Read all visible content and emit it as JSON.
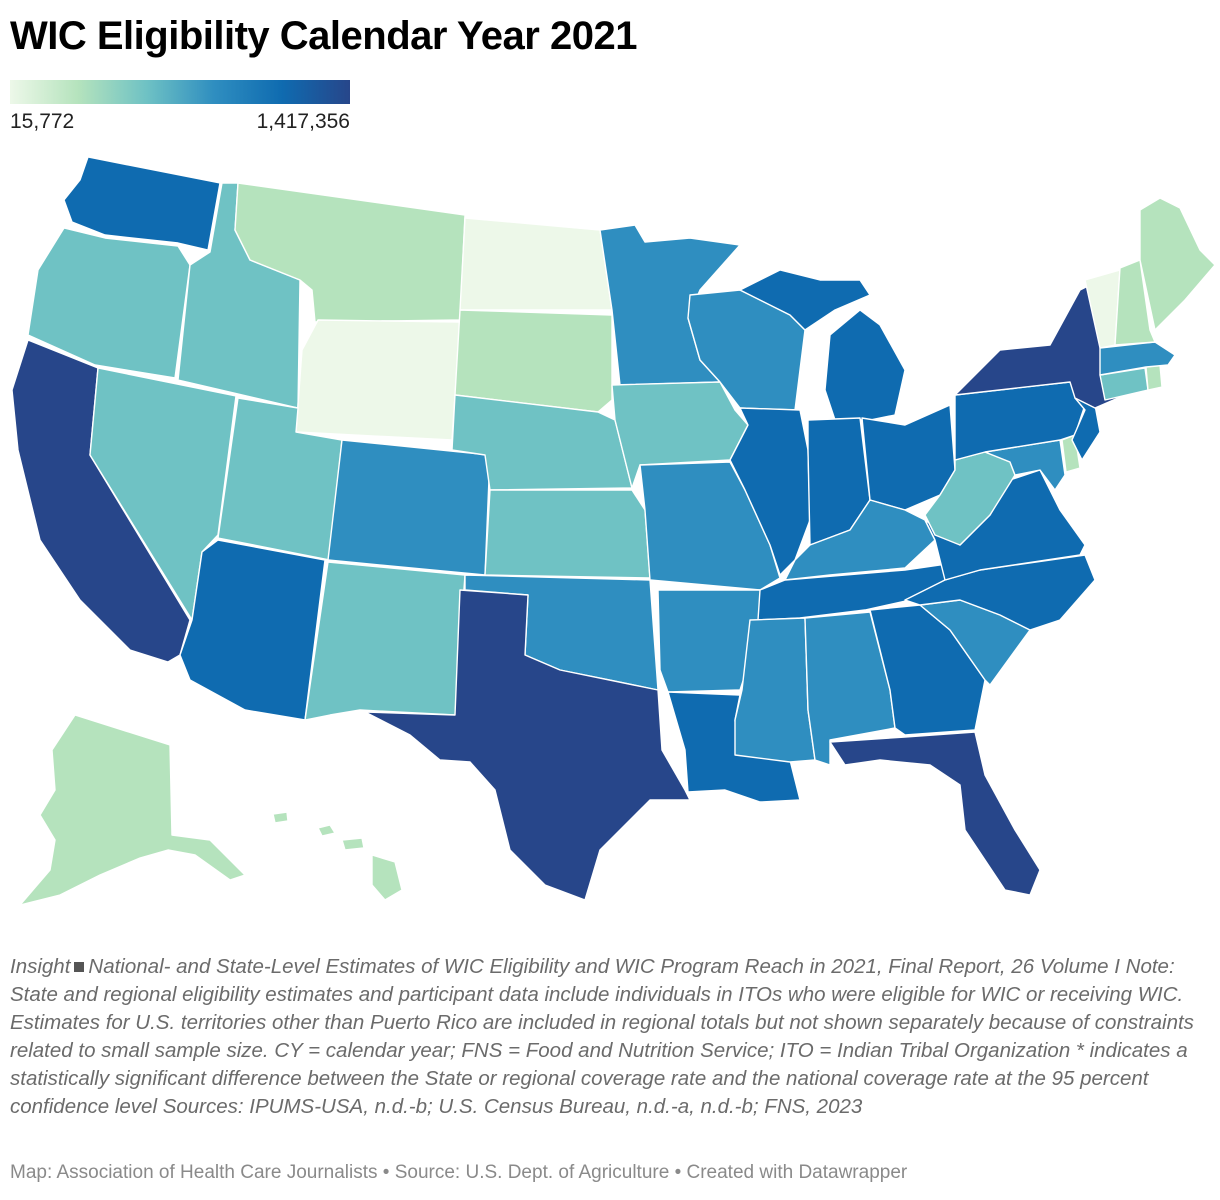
{
  "title": "WIC Eligibility Calendar Year 2021",
  "legend": {
    "min_label": "15,772",
    "max_label": "1,417,356",
    "min_value": 15772,
    "max_value": 1417356,
    "colors": [
      "#edf8e9",
      "#b5e3bd",
      "#6fc2c4",
      "#2f8ec0",
      "#0f6bb0",
      "#27468a"
    ]
  },
  "notes": {
    "source_prefix": "Insight",
    "source_line": "National- and State-Level Estimates of WIC Eligibility and WIC Program Reach in 2021, Final Report, 26",
    "body": "Volume I Note: State and regional eligibility estimates and participant data include individuals in ITOs who were eligible for WIC or receiving WIC. Estimates for U.S. territories other than Puerto Rico are included in regional totals but not shown separately because of constraints related to small sample size. CY = calendar year; FNS = Food and Nutrition Service; ITO = Indian Tribal Organization * indicates a statistically significant difference between the State or regional coverage rate and the national coverage rate at the 95 percent confidence level Sources: IPUMS-USA, n.d.-b; U.S. Census Bureau, n.d.-a, n.d.-b; FNS, 2023"
  },
  "credit": "Map: Association of Health Care Journalists • Source: U.S. Dept. of Agriculture • Created with Datawrapper",
  "chart_data": {
    "type": "choropleth",
    "title": "WIC Eligibility Calendar Year 2021",
    "scale_range": [
      15772,
      1417356
    ],
    "unit": "eligible individuals (color level: 1 = lowest, 6 = highest)",
    "states": [
      {
        "id": "WA",
        "level": 5
      },
      {
        "id": "OR",
        "level": 3
      },
      {
        "id": "CA",
        "level": 6
      },
      {
        "id": "ID",
        "level": 3
      },
      {
        "id": "NV",
        "level": 3
      },
      {
        "id": "MT",
        "level": 2
      },
      {
        "id": "WY",
        "level": 1
      },
      {
        "id": "UT",
        "level": 3
      },
      {
        "id": "AZ",
        "level": 5
      },
      {
        "id": "CO",
        "level": 4
      },
      {
        "id": "NM",
        "level": 3
      },
      {
        "id": "ND",
        "level": 1
      },
      {
        "id": "SD",
        "level": 2
      },
      {
        "id": "NE",
        "level": 3
      },
      {
        "id": "KS",
        "level": 3
      },
      {
        "id": "OK",
        "level": 4
      },
      {
        "id": "TX",
        "level": 6
      },
      {
        "id": "MN",
        "level": 4
      },
      {
        "id": "IA",
        "level": 3
      },
      {
        "id": "MO",
        "level": 4
      },
      {
        "id": "AR",
        "level": 4
      },
      {
        "id": "LA",
        "level": 5
      },
      {
        "id": "WI",
        "level": 4
      },
      {
        "id": "IL",
        "level": 5
      },
      {
        "id": "MI",
        "level": 5
      },
      {
        "id": "IN",
        "level": 5
      },
      {
        "id": "OH",
        "level": 5
      },
      {
        "id": "KY",
        "level": 4
      },
      {
        "id": "TN",
        "level": 5
      },
      {
        "id": "MS",
        "level": 4
      },
      {
        "id": "AL",
        "level": 4
      },
      {
        "id": "GA",
        "level": 5
      },
      {
        "id": "FL",
        "level": 6
      },
      {
        "id": "SC",
        "level": 4
      },
      {
        "id": "NC",
        "level": 5
      },
      {
        "id": "VA",
        "level": 5
      },
      {
        "id": "WV",
        "level": 3
      },
      {
        "id": "PA",
        "level": 5
      },
      {
        "id": "NY",
        "level": 6
      },
      {
        "id": "NJ",
        "level": 5
      },
      {
        "id": "DE",
        "level": 2
      },
      {
        "id": "MD",
        "level": 4
      },
      {
        "id": "CT",
        "level": 3
      },
      {
        "id": "RI",
        "level": 2
      },
      {
        "id": "MA",
        "level": 4
      },
      {
        "id": "VT",
        "level": 1
      },
      {
        "id": "NH",
        "level": 2
      },
      {
        "id": "ME",
        "level": 2
      },
      {
        "id": "AK",
        "level": 2
      },
      {
        "id": "HI",
        "level": 2
      }
    ]
  }
}
